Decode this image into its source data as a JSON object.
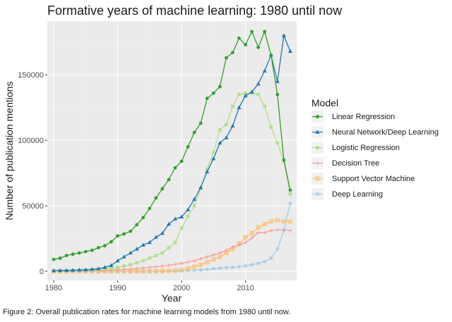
{
  "title": "Formative years of machine learning: 1980 until now",
  "caption": "Figure 2: Overall publication rates for machine learning models from 1980 until now.",
  "chart_data": {
    "type": "line",
    "title": "Formative years of machine learning: 1980 until now",
    "xlabel": "Year",
    "ylabel": "Number of publication mentions",
    "xlim": [
      1979,
      2018
    ],
    "ylim": [
      -7000,
      191000
    ],
    "xticks": [
      1980,
      1990,
      2000,
      2010
    ],
    "yticks": [
      0,
      50000,
      100000,
      150000
    ],
    "ytick_labels": [
      "0",
      "50000",
      "100000",
      "150000"
    ],
    "grid": true,
    "legend": {
      "title": "Model",
      "position": "right"
    },
    "x": [
      1980,
      1981,
      1982,
      1983,
      1984,
      1985,
      1986,
      1987,
      1988,
      1989,
      1990,
      1991,
      1992,
      1993,
      1994,
      1995,
      1996,
      1997,
      1998,
      1999,
      2000,
      2001,
      2002,
      2003,
      2004,
      2005,
      2006,
      2007,
      2008,
      2009,
      2010,
      2011,
      2012,
      2013,
      2014,
      2015,
      2016,
      2017
    ],
    "series": [
      {
        "name": "Linear Regression",
        "color": "#33a02c",
        "marker": "circle",
        "values": [
          9000,
          10000,
          12000,
          13000,
          14000,
          15000,
          16000,
          18000,
          19500,
          22500,
          27000,
          28500,
          30500,
          35500,
          41000,
          48000,
          56000,
          63000,
          70000,
          79000,
          84000,
          95000,
          106000,
          113000,
          132000,
          136000,
          141000,
          163000,
          167000,
          178000,
          173000,
          183000,
          171000,
          183000,
          165000,
          135000,
          85000,
          62000
        ]
      },
      {
        "name": "Neural Network/Deep Learning",
        "color": "#1f78b4",
        "marker": "triangle",
        "values": [
          500,
          600,
          700,
          800,
          1000,
          1200,
          1500,
          2000,
          3000,
          4500,
          8000,
          11000,
          14000,
          17000,
          20000,
          22000,
          26000,
          29000,
          36000,
          40000,
          41500,
          47000,
          55000,
          64000,
          76000,
          86000,
          98000,
          102000,
          111000,
          125000,
          134000,
          137000,
          143000,
          153000,
          165000,
          145000,
          180000,
          168000
        ]
      },
      {
        "name": "Logistic Regression",
        "color": "#b2df8a",
        "marker": "square",
        "values": [
          200,
          300,
          400,
          500,
          600,
          800,
          1000,
          1300,
          1800,
          2300,
          3000,
          4000,
          5000,
          6500,
          8000,
          10000,
          12000,
          14000,
          18000,
          22000,
          33000,
          42000,
          50000,
          63000,
          78000,
          91000,
          108000,
          112000,
          126000,
          135000,
          136000,
          136000,
          135000,
          126000,
          110000,
          98000,
          84000,
          59000
        ]
      },
      {
        "name": "Decision Tree",
        "color": "#fb9a99",
        "marker": "cross",
        "values": [
          100,
          150,
          200,
          250,
          300,
          400,
          500,
          600,
          700,
          900,
          1100,
          1400,
          1700,
          2100,
          2500,
          3000,
          3500,
          4000,
          4600,
          5300,
          6000,
          7000,
          8000,
          9500,
          11000,
          12500,
          14000,
          16000,
          18500,
          20000,
          22000,
          25500,
          29500,
          29500,
          31000,
          31500,
          32000,
          31000
        ]
      },
      {
        "name": "Support Vector Machine",
        "color": "#fdbf6f",
        "marker": "boxcross",
        "values": [
          0,
          0,
          0,
          0,
          0,
          0,
          0,
          0,
          0,
          0,
          0,
          0,
          0,
          0,
          0,
          50,
          100,
          200,
          400,
          600,
          1000,
          2000,
          3500,
          5000,
          7000,
          9000,
          11000,
          14000,
          17000,
          21000,
          26000,
          29000,
          33500,
          36000,
          38000,
          39000,
          38000,
          38000
        ]
      },
      {
        "name": "Deep Learning",
        "color": "#a6cee3",
        "marker": "asterisk",
        "values": [
          0,
          0,
          0,
          0,
          0,
          0,
          0,
          0,
          0,
          0,
          0,
          0,
          0,
          0,
          0,
          0,
          0,
          0,
          0,
          100,
          300,
          600,
          800,
          1000,
          1500,
          2000,
          2300,
          2700,
          3000,
          3500,
          4200,
          5000,
          6000,
          7500,
          10000,
          17000,
          31000,
          52000
        ]
      }
    ]
  }
}
